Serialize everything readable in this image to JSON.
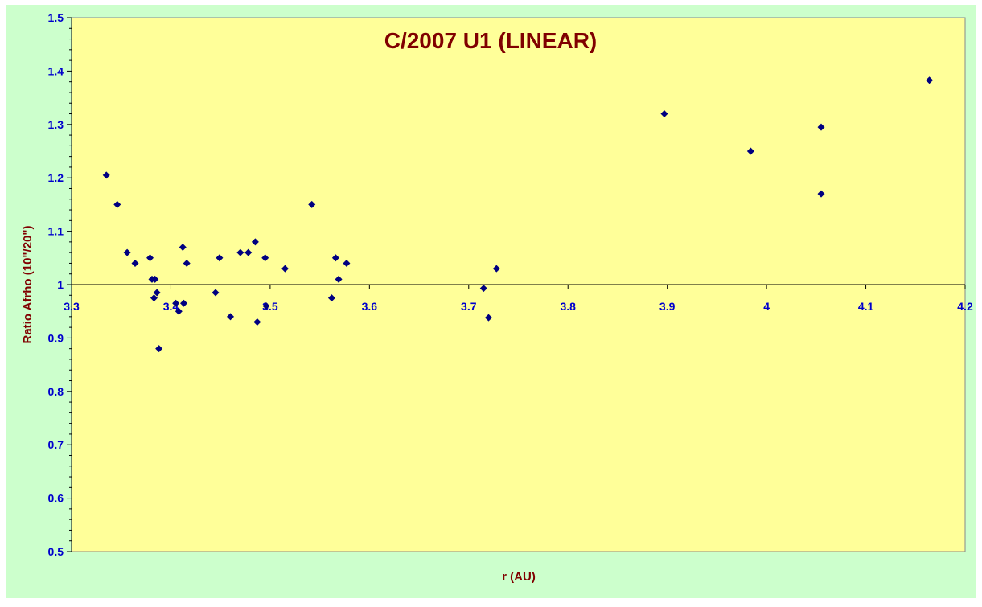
{
  "chart_data": {
    "type": "scatter",
    "title": "C/2007 U1 (LINEAR)",
    "xlabel": "r (AU)",
    "ylabel": "Ratio Afrho (10\"/20\")",
    "xlim": [
      3.3,
      4.2
    ],
    "ylim": [
      0.5,
      1.5
    ],
    "x_ticks": [
      "3.3",
      "3.4",
      "3.5",
      "3.6",
      "3.7",
      "3.8",
      "3.9",
      "4",
      "4.1",
      "4.2"
    ],
    "y_ticks": [
      "0.5",
      "0.6",
      "0.7",
      "0.8",
      "0.9",
      "1",
      "1.1",
      "1.2",
      "1.3",
      "1.4",
      "1.5"
    ],
    "x_axis_crosses_at": 1.0,
    "grid": false,
    "legend": "none",
    "colors": {
      "outer_background": "#ccffcc",
      "plot_background": "#ffff99",
      "marker": "#000080",
      "title": "#800000",
      "tick_labels": "#0000cc"
    },
    "series": [
      {
        "points": [
          [
            3.335,
            1.205
          ],
          [
            3.346,
            1.15
          ],
          [
            3.356,
            1.06
          ],
          [
            3.364,
            1.04
          ],
          [
            3.379,
            1.05
          ],
          [
            3.381,
            1.01
          ],
          [
            3.383,
            0.975
          ],
          [
            3.384,
            1.01
          ],
          [
            3.386,
            0.985
          ],
          [
            3.388,
            0.88
          ],
          [
            3.405,
            0.965
          ],
          [
            3.408,
            0.95
          ],
          [
            3.412,
            1.07
          ],
          [
            3.413,
            0.965
          ],
          [
            3.416,
            1.04
          ],
          [
            3.445,
            0.985
          ],
          [
            3.449,
            1.05
          ],
          [
            3.46,
            0.94
          ],
          [
            3.47,
            1.06
          ],
          [
            3.478,
            1.06
          ],
          [
            3.485,
            1.08
          ],
          [
            3.487,
            0.93
          ],
          [
            3.495,
            1.05
          ],
          [
            3.496,
            0.96
          ],
          [
            3.515,
            1.03
          ],
          [
            3.542,
            1.15
          ],
          [
            3.562,
            0.975
          ],
          [
            3.566,
            1.05
          ],
          [
            3.569,
            1.01
          ],
          [
            3.577,
            1.04
          ],
          [
            3.715,
            0.993
          ],
          [
            3.72,
            0.938
          ],
          [
            3.728,
            1.03
          ],
          [
            3.897,
            1.32
          ],
          [
            3.984,
            1.25
          ],
          [
            4.055,
            1.295
          ],
          [
            4.055,
            1.17
          ],
          [
            4.164,
            1.383
          ]
        ]
      }
    ]
  }
}
